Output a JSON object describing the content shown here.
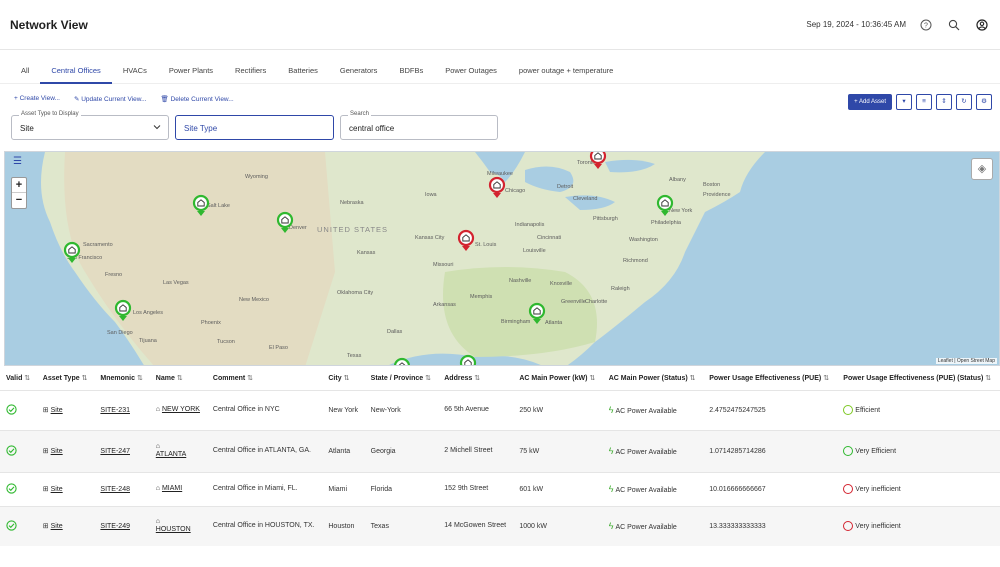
{
  "header": {
    "title": "Network View",
    "datetime": "Sep 19, 2024 - 10:36:45 AM",
    "help_icon": "help-circle-icon",
    "search_icon": "search-icon",
    "account_icon": "account-icon"
  },
  "tabs": [
    "All",
    "Central Offices",
    "HVACs",
    "Power Plants",
    "Rectifiers",
    "Batteries",
    "Generators",
    "BDFBs",
    "Power Outages",
    "power outage + temperature"
  ],
  "active_tab": "Central Offices",
  "actions": {
    "create": "Create View...",
    "update": "Update Current View...",
    "delete": "Delete Current View..."
  },
  "filters": {
    "asset_type_label": "Asset Type to Display",
    "asset_type_value": "Site",
    "site_type_value": "Site Type",
    "search_label": "Search",
    "search_value": "central office"
  },
  "toolbar": {
    "add_asset": "+ Add Asset"
  },
  "map": {
    "attribution": "Leaflet | Open Street Map",
    "labels": {
      "us": "UNITED STATES",
      "sacramento": "Sacramento",
      "sanfrancisco": "San Francisco",
      "fresno": "Fresno",
      "lasvegas": "Las Vegas",
      "losangeles": "Los Angeles",
      "sandiego": "San Diego",
      "tijuana": "Tijuana",
      "phoenix": "Phoenix",
      "tucson": "Tucson",
      "elpaso": "El Paso",
      "denver": "Denver",
      "saltlake": "Salt Lake",
      "nebraska": "Nebraska",
      "kansas": "Kansas",
      "kansascity": "Kansas City",
      "stlouis": "St. Louis",
      "oklahomacity": "Oklahoma City",
      "dallas": "Dallas",
      "texas": "Texas",
      "chicago": "Chicago",
      "milwaukee": "Milwaukee",
      "detroit": "Detroit",
      "toronto": "Toronto",
      "cleveland": "Cleveland",
      "newyork": "New York",
      "philadelphia": "Philadelphia",
      "washington": "Washington",
      "richmond": "Richmond",
      "boston": "Boston",
      "albany": "Albany",
      "providence": "Providence",
      "pittsburgh": "Pittsburgh",
      "indianapolis": "Indianapolis",
      "cincinnati": "Cincinnati",
      "louisville": "Louisville",
      "nashville": "Nashville",
      "memphis": "Memphis",
      "atlanta": "Atlanta",
      "birmingham": "Birmingham",
      "charlotte": "Charlotte",
      "raleigh": "Raleigh",
      "greenville": "Greenville",
      "knoxville": "Knoxville",
      "arkansas": "Arkansas",
      "iowa": "Iowa",
      "missouri": "Missouri",
      "newmexico": "New Mexico",
      "wyoming": "Wyoming"
    },
    "markers": [
      {
        "status": "green",
        "color": "#2fb82f"
      },
      {
        "status": "red",
        "color": "#d3232f"
      }
    ]
  },
  "table": {
    "headers": [
      "Valid",
      "Asset Type",
      "Mnemonic",
      "Name",
      "Comment",
      "City",
      "State / Province",
      "Address",
      "AC Main Power (kW)",
      "AC Main Power (Status)",
      "Power Usage Effectiveness (PUE)",
      "Power Usage Effectiveness (PUE) (Status)"
    ],
    "rows": [
      {
        "asset_type": "Site",
        "mnemonic": "SITE-231",
        "name": "NEW YORK",
        "comment": "Central Office in NYC",
        "city": "New York",
        "state": "New-York",
        "address": "66 5th Avenue",
        "ac_power": "250 kW",
        "ac_status": "AC Power Available",
        "pue": "2.4752475247525",
        "pue_status": "Efficient",
        "pue_color": "#7ec824"
      },
      {
        "asset_type": "Site",
        "mnemonic": "SITE-247",
        "name": "ATLANTA",
        "comment": "Central Office in ATLANTA, GA.",
        "city": "Atlanta",
        "state": "Georgia",
        "address": "2 Michell Street",
        "ac_power": "75 kW",
        "ac_status": "AC Power Available",
        "pue": "1.0714285714286",
        "pue_status": "Very Efficient",
        "pue_color": "#2fb82f"
      },
      {
        "asset_type": "Site",
        "mnemonic": "SITE-248",
        "name": "MIAMI",
        "comment": "Central Office in Miami, FL.",
        "city": "Miami",
        "state": "Florida",
        "address": "152 9th Street",
        "ac_power": "601 kW",
        "ac_status": "AC Power Available",
        "pue": "10.016666666667",
        "pue_status": "Very inefficient",
        "pue_color": "#d3232f"
      },
      {
        "asset_type": "Site",
        "mnemonic": "SITE-249",
        "name": "HOUSTON",
        "comment": "Central Office in HOUSTON, TX.",
        "city": "Houston",
        "state": "Texas",
        "address": "14 McGowen Street",
        "ac_power": "1000 kW",
        "ac_status": "AC Power Available",
        "pue": "13.333333333333",
        "pue_status": "Very inefficient",
        "pue_color": "#d3232f"
      }
    ]
  }
}
